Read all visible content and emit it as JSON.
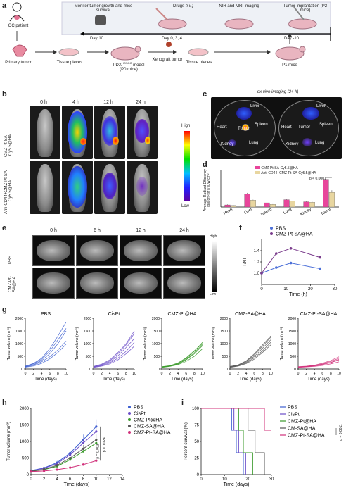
{
  "panels": {
    "a": "a",
    "b": "b",
    "c": "c",
    "d": "d",
    "e": "e",
    "f": "f",
    "g": "g",
    "h": "h",
    "i": "i"
  },
  "a": {
    "oc": "OC patient",
    "primary": "Primary tumor",
    "pieces1": "Tissue pieces",
    "pdx": "PDX",
    "pdx_sup": "HGSOC",
    "pdx_rest": " model",
    "p0": "(P0 mice)",
    "xeno": "Xenograft tumor",
    "pieces2": "Tissue pieces",
    "p1": "P1 mice",
    "monitor": "Monitor tumor growth and mice survival",
    "drugs": "Drugs",
    "iv": "(i.v.)",
    "nir": "NIR and MRI imaging",
    "implant": "Tumor implantation (P2 mice)",
    "day10": "Day 10",
    "day034": "Day 0, 3, 4",
    "dayneg10": "Day -10"
  },
  "b": {
    "times": [
      "0 h",
      "4 h",
      "12 h",
      "24 h"
    ],
    "row1": "CMZ-Pt-SA -Cy5.5@HA",
    "row2": "Anti-CD44+CMZ-Pt-SA -Cy5.5@HA",
    "high": "High",
    "low": "Low"
  },
  "c": {
    "title": "ex vivo imaging (24 h)",
    "organs": [
      "Liver",
      "Heart",
      "Tumor",
      "Spleen",
      "Kidney",
      "Lung"
    ]
  },
  "d": {
    "ylabel": "Average Radiant Efficiency [p/s/cm²/sr] / [μW/cm²]",
    "legend1": "CMZ-Pt-SA-Cy5.5@HA",
    "legend2": "Anti-CD44+CMZ-Pt-SA-Cy5.5@HA",
    "pval": "p < 0.0001"
  },
  "e": {
    "times": [
      "0 h",
      "6 h",
      "12 h",
      "24 h"
    ],
    "row1": "PBS",
    "row2": "CMZ-Pt-SA@HA",
    "high": "High",
    "low": "Low"
  },
  "chart_data": [
    {
      "type": "bar",
      "categories": [
        "Heart",
        "Liver",
        "Spleen",
        "Lung",
        "Kidney",
        "Tumor"
      ],
      "series": [
        {
          "name": "CMZ-Pt-SA-Cy5.5@HA",
          "values": [
            0.4,
            2.5,
            0.8,
            1.4,
            1.0,
            5.3
          ],
          "errors": [
            0.1,
            0.2,
            0.1,
            0.15,
            0.1,
            0.8
          ],
          "color": "#e8459b"
        },
        {
          "name": "Anti-CD44+CMZ-Pt-SA-Cy5.5@HA",
          "values": [
            0.3,
            1.3,
            0.5,
            1.1,
            0.9,
            2.8
          ],
          "errors": [
            0.05,
            0.1,
            0.05,
            0.1,
            0.1,
            0.4
          ],
          "color": "#e8d6a0"
        }
      ],
      "ylim": [
        0,
        7
      ]
    },
    {
      "type": "line",
      "xlabel": "Time (h)",
      "ylabel": "T/NT",
      "xlim": [
        0,
        30
      ],
      "ylim": [
        0.8,
        1.6
      ],
      "xticks": [
        0,
        10,
        20,
        30
      ],
      "yticks": [
        1.0,
        1.2,
        1.4
      ],
      "series": [
        {
          "name": "PBS",
          "x": [
            0,
            6,
            12,
            24
          ],
          "y": [
            1.0,
            1.1,
            1.18,
            1.08
          ],
          "color": "#4b6fd8"
        },
        {
          "name": "CMZ-Pt-SA@HA",
          "x": [
            0,
            6,
            12,
            24
          ],
          "y": [
            1.0,
            1.35,
            1.44,
            1.28
          ],
          "color": "#7a3c8c"
        }
      ]
    },
    {
      "type": "line",
      "title": "PBS",
      "xlabel": "Time (days)",
      "ylabel": "Tumor volume (mm³)",
      "xlim": [
        0,
        10
      ],
      "ylim": [
        0,
        2000
      ],
      "xticks": [
        0,
        2,
        4,
        6,
        8,
        10
      ],
      "yticks": [
        0,
        500,
        1000,
        1500,
        2000
      ],
      "color": "#3d5fd0",
      "lines": [
        [
          100,
          200,
          380,
          700,
          1150,
          1600
        ],
        [
          80,
          170,
          330,
          600,
          1000,
          1500
        ],
        [
          90,
          150,
          280,
          480,
          750,
          1100
        ],
        [
          70,
          120,
          220,
          400,
          650,
          980
        ],
        [
          110,
          220,
          420,
          800,
          1300,
          1850
        ]
      ]
    },
    {
      "type": "line",
      "title": "CisPt",
      "xlabel": "Time (days)",
      "ylabel": "Tumor volume (mm³)",
      "xlim": [
        0,
        10
      ],
      "ylim": [
        0,
        2000
      ],
      "xticks": [
        0,
        2,
        4,
        6,
        8,
        10
      ],
      "yticks": [
        0,
        500,
        1000,
        1500,
        2000
      ],
      "color": "#6a4cc8",
      "lines": [
        [
          90,
          170,
          320,
          600,
          950,
          1400
        ],
        [
          80,
          150,
          280,
          520,
          850,
          1200
        ],
        [
          100,
          190,
          360,
          650,
          1000,
          1500
        ],
        [
          70,
          130,
          240,
          430,
          700,
          1050
        ],
        [
          60,
          110,
          200,
          360,
          600,
          900
        ]
      ]
    },
    {
      "type": "line",
      "title": "CMZ-Pt@HA",
      "xlabel": "Time (days)",
      "ylabel": "Tumor volume (mm³)",
      "xlim": [
        0,
        10
      ],
      "ylim": [
        0,
        2000
      ],
      "xticks": [
        0,
        2,
        4,
        6,
        8,
        10
      ],
      "yticks": [
        0,
        500,
        1000,
        1500,
        2000
      ],
      "color": "#3a9a2a",
      "lines": [
        [
          80,
          120,
          220,
          420,
          700,
          1050
        ],
        [
          70,
          110,
          190,
          360,
          600,
          920
        ],
        [
          90,
          130,
          240,
          440,
          720,
          1000
        ],
        [
          60,
          100,
          170,
          300,
          500,
          800
        ],
        [
          85,
          115,
          200,
          380,
          640,
          960
        ]
      ]
    },
    {
      "type": "line",
      "title": "CMZ-SA@HA",
      "xlabel": "Time (days)",
      "ylabel": "Tumor volume (mm³)",
      "xlim": [
        0,
        10
      ],
      "ylim": [
        0,
        2000
      ],
      "xticks": [
        0,
        2,
        4,
        6,
        8,
        10
      ],
      "yticks": [
        0,
        500,
        1000,
        1500,
        2000
      ],
      "color": "#555555",
      "lines": [
        [
          90,
          150,
          300,
          560,
          900,
          1250
        ],
        [
          80,
          140,
          270,
          500,
          820,
          1150
        ],
        [
          70,
          120,
          240,
          440,
          720,
          1050
        ],
        [
          100,
          160,
          320,
          600,
          950,
          1300
        ],
        [
          60,
          110,
          210,
          390,
          650,
          950
        ]
      ]
    },
    {
      "type": "line",
      "title": "CMZ-Pt-SA@HA",
      "xlabel": "Time (days)",
      "ylabel": "Tumor volume (mm³)",
      "xlim": [
        0,
        10
      ],
      "ylim": [
        0,
        2000
      ],
      "xticks": [
        0,
        2,
        4,
        6,
        8,
        10
      ],
      "yticks": [
        0,
        500,
        1000,
        1500,
        2000
      ],
      "color": "#d0307a",
      "lines": [
        [
          80,
          100,
          140,
          200,
          300,
          420
        ],
        [
          70,
          90,
          120,
          170,
          250,
          350
        ],
        [
          90,
          110,
          150,
          230,
          330,
          480
        ],
        [
          60,
          80,
          100,
          140,
          200,
          280
        ],
        [
          85,
          95,
          130,
          180,
          260,
          380
        ]
      ]
    },
    {
      "type": "line",
      "xlabel": "Time (days)",
      "ylabel": "Tumor volume (mm³)",
      "xlim": [
        0,
        14
      ],
      "ylim": [
        0,
        2000
      ],
      "xticks": [
        0,
        2,
        4,
        6,
        8,
        10,
        12,
        14
      ],
      "yticks": [
        0,
        500,
        1000,
        1500,
        2000
      ],
      "series": [
        {
          "name": "PBS",
          "x": [
            0,
            2,
            4,
            6,
            8,
            10
          ],
          "y": [
            120,
            200,
            360,
            650,
            1050,
            1450
          ],
          "color": "#3d5fd0"
        },
        {
          "name": "CisPt",
          "x": [
            0,
            2,
            4,
            6,
            8,
            10
          ],
          "y": [
            110,
            190,
            330,
            600,
            950,
            1300
          ],
          "color": "#6a4cc8"
        },
        {
          "name": "CMZ-Pt@HA",
          "x": [
            0,
            2,
            4,
            6,
            8,
            10
          ],
          "y": [
            100,
            150,
            250,
            450,
            700,
            950
          ],
          "color": "#3a9a2a"
        },
        {
          "name": "CMZ-SA@HA",
          "x": [
            0,
            2,
            4,
            6,
            8,
            10
          ],
          "y": [
            100,
            160,
            280,
            500,
            780,
            1050
          ],
          "color": "#555555"
        },
        {
          "name": "CMZ-Pt-SA@HA",
          "x": [
            0,
            2,
            4,
            6,
            8,
            10
          ],
          "y": [
            90,
            110,
            150,
            210,
            300,
            420
          ],
          "color": "#d0307a"
        }
      ],
      "annotations": [
        "p = 0.024",
        "p = 0.003"
      ]
    },
    {
      "type": "line",
      "xlabel": "Time (days)",
      "ylabel": "Percent survival (%)",
      "xlim": [
        0,
        30
      ],
      "ylim": [
        0,
        100
      ],
      "xticks": [
        0,
        10,
        20,
        30
      ],
      "yticks": [
        0,
        25,
        50,
        75,
        100
      ],
      "series": [
        {
          "name": "PBS",
          "x": [
            0,
            13,
            15,
            18
          ],
          "y": [
            100,
            67,
            33,
            0
          ],
          "color": "#3d5fd0"
        },
        {
          "name": "CisPt",
          "x": [
            0,
            14,
            16,
            19
          ],
          "y": [
            100,
            67,
            33,
            0
          ],
          "color": "#6a4cc8"
        },
        {
          "name": "CMZ-Pt@HA",
          "x": [
            0,
            16,
            18,
            22
          ],
          "y": [
            100,
            67,
            33,
            0
          ],
          "color": "#3a9a2a"
        },
        {
          "name": "CM-SA@HA",
          "x": [
            0,
            20,
            23,
            27
          ],
          "y": [
            100,
            67,
            33,
            0
          ],
          "color": "#555555"
        },
        {
          "name": "CMZ-Pt-SA@HA",
          "x": [
            0,
            27,
            30
          ],
          "y": [
            100,
            67,
            67
          ],
          "color": "#d0307a"
        }
      ],
      "annotations": [
        "p = 0.0011"
      ]
    }
  ]
}
